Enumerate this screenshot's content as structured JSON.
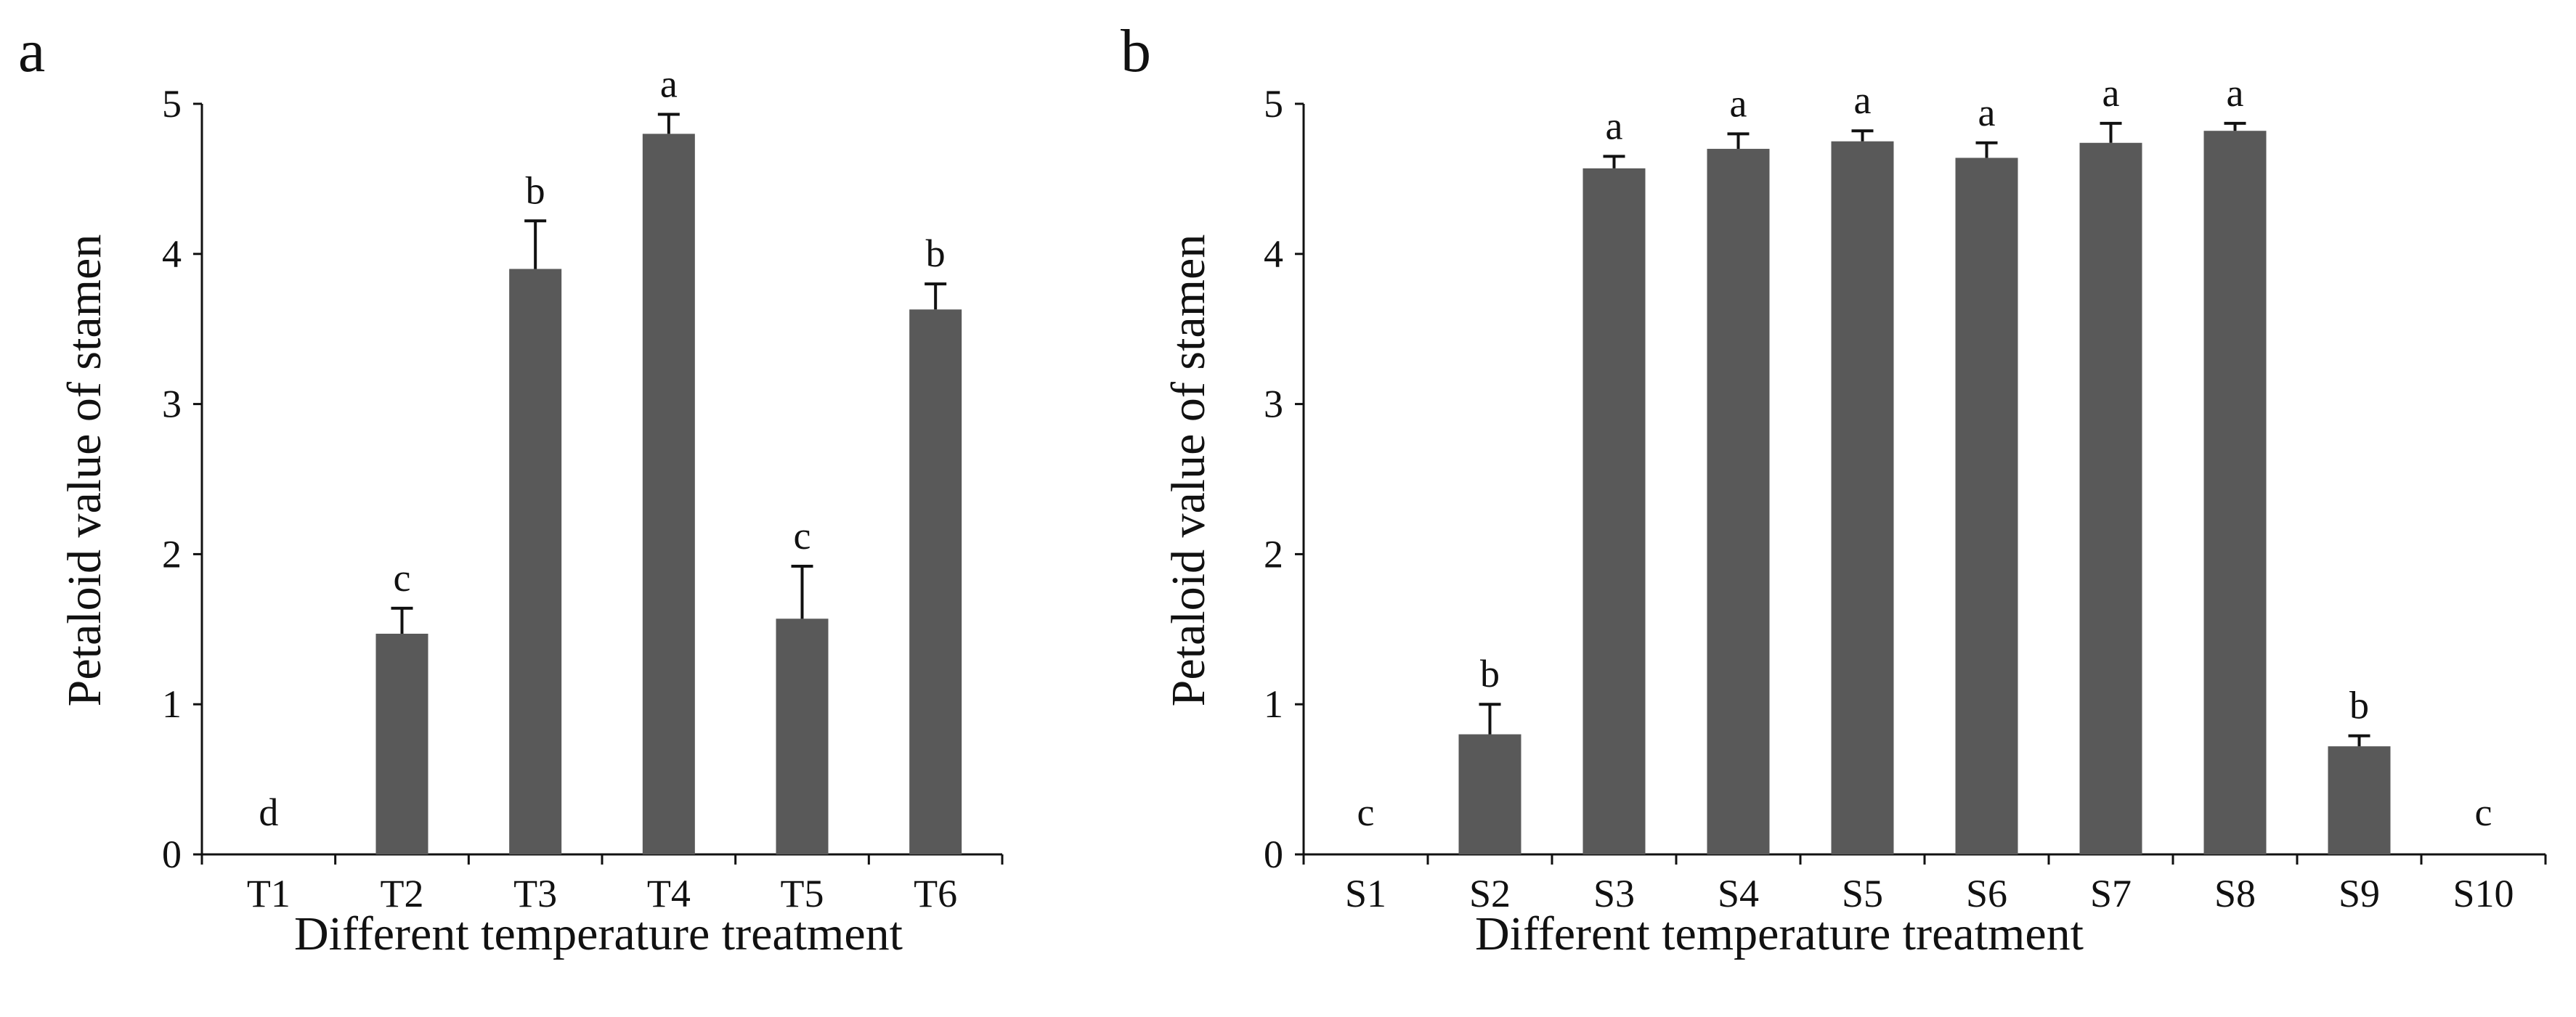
{
  "chart_data": [
    {
      "panel": "a",
      "type": "bar",
      "xlabel": "Different temperature treatment",
      "ylabel": "Petaloid value of stamen",
      "ylim": [
        0,
        5
      ],
      "yticks": [
        0,
        1,
        2,
        3,
        4,
        5
      ],
      "categories": [
        "T1",
        "T2",
        "T3",
        "T4",
        "T5",
        "T6"
      ],
      "values": [
        0,
        1.47,
        3.9,
        4.8,
        1.57,
        3.63
      ],
      "errors": [
        0,
        0.17,
        0.32,
        0.13,
        0.35,
        0.17
      ],
      "significance": [
        "d",
        "c",
        "b",
        "a",
        "c",
        "b"
      ],
      "bar_color": "#595959"
    },
    {
      "panel": "b",
      "type": "bar",
      "xlabel": "Different temperature treatment",
      "ylabel": "Petaloid value of stamen",
      "ylim": [
        0,
        5
      ],
      "yticks": [
        0,
        1,
        2,
        3,
        4,
        5
      ],
      "categories": [
        "S1",
        "S2",
        "S3",
        "S4",
        "S5",
        "S6",
        "S7",
        "S8",
        "S9",
        "S10"
      ],
      "values": [
        0,
        0.8,
        4.57,
        4.7,
        4.75,
        4.64,
        4.74,
        4.82,
        0.72,
        0
      ],
      "errors": [
        0,
        0.2,
        0.08,
        0.1,
        0.07,
        0.1,
        0.13,
        0.05,
        0.07,
        0
      ],
      "significance": [
        "c",
        "b",
        "a",
        "a",
        "a",
        "a",
        "a",
        "a",
        "b",
        "c"
      ],
      "bar_color": "#595959"
    }
  ]
}
